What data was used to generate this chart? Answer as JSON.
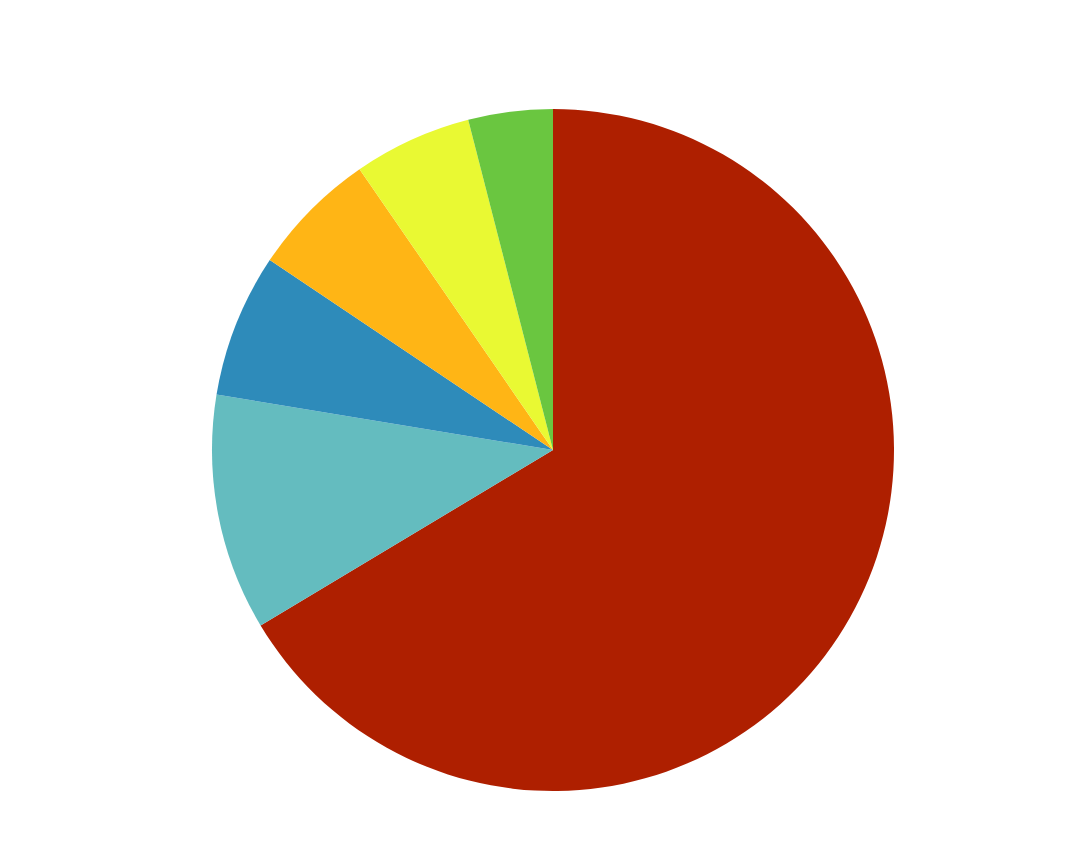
{
  "chart_data": {
    "type": "pie",
    "categories": [
      null,
      null,
      null,
      null,
      null,
      null
    ],
    "values": [
      66.4,
      11.2,
      6.8,
      6.0,
      5.6,
      4.0
    ],
    "colors": [
      "#ae1f00",
      "#64bcbf",
      "#2e8bba",
      "#ffb515",
      "#e9f933",
      "#6ac640"
    ]
  }
}
